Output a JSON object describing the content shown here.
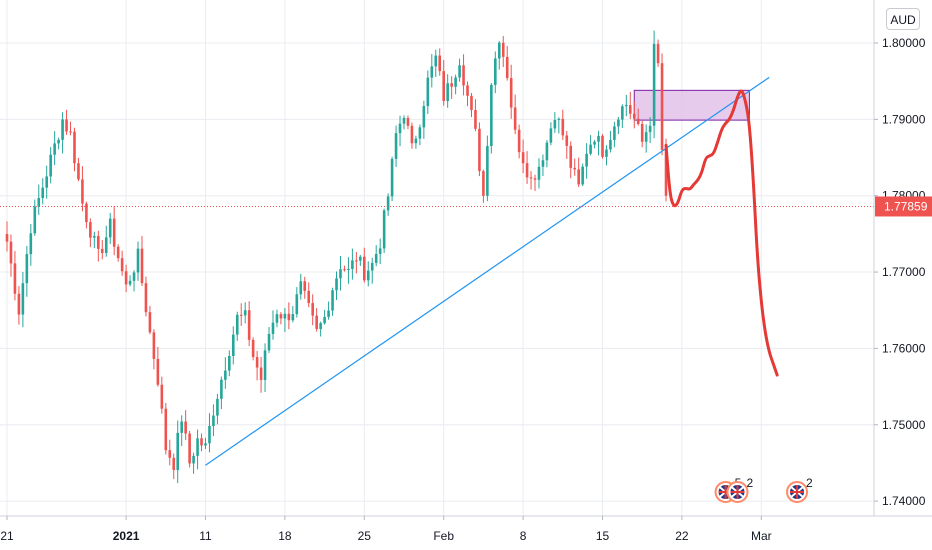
{
  "currency_badge": "AUD",
  "colors": {
    "up": "#26a69a",
    "down": "#ef5350",
    "trendline": "#2196f3",
    "forecast": "#e53935",
    "zone_fill": "#e1bee7",
    "zone_border": "#7b1fa2",
    "price_line": "#ef5350",
    "grid": "#e9ecf1"
  },
  "events": [
    {
      "icon": "uk-flag-icon",
      "count": "5"
    },
    {
      "icon": "australia-flag-icon",
      "count": "2"
    },
    {
      "icon": "uk-flag-icon",
      "count": "2"
    }
  ],
  "chart_data": {
    "type": "candlestick",
    "symbol_currency": "AUD",
    "x_ticks": [
      {
        "label": "21",
        "bar": 0,
        "bold": false
      },
      {
        "label": "2021",
        "bar": 30,
        "bold": true
      },
      {
        "label": "11",
        "bar": 50,
        "bold": false
      },
      {
        "label": "18",
        "bar": 70,
        "bold": false
      },
      {
        "label": "25",
        "bar": 90,
        "bold": false
      },
      {
        "label": "Feb",
        "bar": 110,
        "bold": false
      },
      {
        "label": "8",
        "bar": 130,
        "bold": false
      },
      {
        "label": "15",
        "bar": 150,
        "bold": false
      },
      {
        "label": "22",
        "bar": 170,
        "bold": false
      },
      {
        "label": "Mar",
        "bar": 190,
        "bold": false
      }
    ],
    "y_ticks": [
      "1.74000",
      "1.75000",
      "1.76000",
      "1.77000",
      "1.78000",
      "1.79000",
      "1.80000"
    ],
    "ylim": [
      1.7385,
      1.8055
    ],
    "bar_count_visible": 212,
    "current_price": "1.77859",
    "current_value": 1.77859,
    "trendline": [
      {
        "bar": 50,
        "price": 1.7447
      },
      {
        "bar": 192,
        "price": 1.7955
      }
    ],
    "resistance_zone": {
      "bar_start": 158,
      "bar_end": 187,
      "price_low": 1.7899,
      "price_high": 1.7938
    },
    "forecast_path": [
      {
        "bar": 166,
        "price": 1.7866
      },
      {
        "bar": 167,
        "price": 1.78
      },
      {
        "bar": 168,
        "price": 1.7785
      },
      {
        "bar": 169,
        "price": 1.779
      },
      {
        "bar": 170,
        "price": 1.7808
      },
      {
        "bar": 171,
        "price": 1.781
      },
      {
        "bar": 172,
        "price": 1.7808
      },
      {
        "bar": 173,
        "price": 1.7815
      },
      {
        "bar": 174,
        "price": 1.782
      },
      {
        "bar": 175,
        "price": 1.783
      },
      {
        "bar": 176,
        "price": 1.785
      },
      {
        "bar": 177,
        "price": 1.7852
      },
      {
        "bar": 178,
        "price": 1.7855
      },
      {
        "bar": 179,
        "price": 1.787
      },
      {
        "bar": 180,
        "price": 1.7887
      },
      {
        "bar": 181,
        "price": 1.7895
      },
      {
        "bar": 182,
        "price": 1.79
      },
      {
        "bar": 183,
        "price": 1.7912
      },
      {
        "bar": 184,
        "price": 1.793
      },
      {
        "bar": 185,
        "price": 1.794
      },
      {
        "bar": 186,
        "price": 1.7925
      },
      {
        "bar": 187,
        "price": 1.7895
      },
      {
        "bar": 188,
        "price": 1.782
      },
      {
        "bar": 189,
        "price": 1.772
      },
      {
        "bar": 190,
        "price": 1.766
      },
      {
        "bar": 191,
        "price": 1.762
      },
      {
        "bar": 192,
        "price": 1.7595
      },
      {
        "bar": 193,
        "price": 1.758
      },
      {
        "bar": 194,
        "price": 1.7565
      }
    ],
    "anchors": [
      {
        "bar": 0,
        "price": 1.774
      },
      {
        "bar": 3,
        "price": 1.765
      },
      {
        "bar": 6,
        "price": 1.776
      },
      {
        "bar": 10,
        "price": 1.783
      },
      {
        "bar": 14,
        "price": 1.79
      },
      {
        "bar": 16,
        "price": 1.788
      },
      {
        "bar": 19,
        "price": 1.779
      },
      {
        "bar": 23,
        "price": 1.772
      },
      {
        "bar": 26,
        "price": 1.776
      },
      {
        "bar": 30,
        "price": 1.768
      },
      {
        "bar": 33,
        "price": 1.772
      },
      {
        "bar": 36,
        "price": 1.762
      },
      {
        "bar": 38,
        "price": 1.756
      },
      {
        "bar": 40,
        "price": 1.747
      },
      {
        "bar": 42,
        "price": 1.745
      },
      {
        "bar": 44,
        "price": 1.751
      },
      {
        "bar": 46,
        "price": 1.745
      },
      {
        "bar": 48,
        "price": 1.748
      },
      {
        "bar": 50,
        "price": 1.747
      },
      {
        "bar": 52,
        "price": 1.752
      },
      {
        "bar": 54,
        "price": 1.756
      },
      {
        "bar": 56,
        "price": 1.76
      },
      {
        "bar": 58,
        "price": 1.764
      },
      {
        "bar": 60,
        "price": 1.764
      },
      {
        "bar": 62,
        "price": 1.759
      },
      {
        "bar": 64,
        "price": 1.756
      },
      {
        "bar": 66,
        "price": 1.762
      },
      {
        "bar": 68,
        "price": 1.765
      },
      {
        "bar": 70,
        "price": 1.764
      },
      {
        "bar": 72,
        "price": 1.765
      },
      {
        "bar": 74,
        "price": 1.768
      },
      {
        "bar": 76,
        "price": 1.765
      },
      {
        "bar": 78,
        "price": 1.762
      },
      {
        "bar": 80,
        "price": 1.764
      },
      {
        "bar": 82,
        "price": 1.768
      },
      {
        "bar": 84,
        "price": 1.771
      },
      {
        "bar": 86,
        "price": 1.77
      },
      {
        "bar": 88,
        "price": 1.772
      },
      {
        "bar": 90,
        "price": 1.77
      },
      {
        "bar": 92,
        "price": 1.771
      },
      {
        "bar": 94,
        "price": 1.774
      },
      {
        "bar": 96,
        "price": 1.78
      },
      {
        "bar": 98,
        "price": 1.788
      },
      {
        "bar": 100,
        "price": 1.791
      },
      {
        "bar": 102,
        "price": 1.786
      },
      {
        "bar": 104,
        "price": 1.79
      },
      {
        "bar": 106,
        "price": 1.795
      },
      {
        "bar": 108,
        "price": 1.798
      },
      {
        "bar": 110,
        "price": 1.793
      },
      {
        "bar": 112,
        "price": 1.795
      },
      {
        "bar": 114,
        "price": 1.798
      },
      {
        "bar": 116,
        "price": 1.793
      },
      {
        "bar": 118,
        "price": 1.788
      },
      {
        "bar": 120,
        "price": 1.78
      },
      {
        "bar": 122,
        "price": 1.795
      },
      {
        "bar": 124,
        "price": 1.801
      },
      {
        "bar": 126,
        "price": 1.796
      },
      {
        "bar": 128,
        "price": 1.788
      },
      {
        "bar": 130,
        "price": 1.785
      },
      {
        "bar": 132,
        "price": 1.782
      },
      {
        "bar": 134,
        "price": 1.784
      },
      {
        "bar": 136,
        "price": 1.787
      },
      {
        "bar": 138,
        "price": 1.791
      },
      {
        "bar": 140,
        "price": 1.788
      },
      {
        "bar": 142,
        "price": 1.784
      },
      {
        "bar": 144,
        "price": 1.781
      },
      {
        "bar": 146,
        "price": 1.786
      },
      {
        "bar": 148,
        "price": 1.788
      },
      {
        "bar": 150,
        "price": 1.786
      },
      {
        "bar": 152,
        "price": 1.788
      },
      {
        "bar": 154,
        "price": 1.791
      },
      {
        "bar": 156,
        "price": 1.792
      },
      {
        "bar": 158,
        "price": 1.79
      },
      {
        "bar": 160,
        "price": 1.787
      },
      {
        "bar": 162,
        "price": 1.79
      },
      {
        "bar": 163,
        "price": 1.799
      },
      {
        "bar": 164,
        "price": 1.797
      },
      {
        "bar": 165,
        "price": 1.786
      },
      {
        "bar": 166,
        "price": 1.78
      }
    ]
  }
}
